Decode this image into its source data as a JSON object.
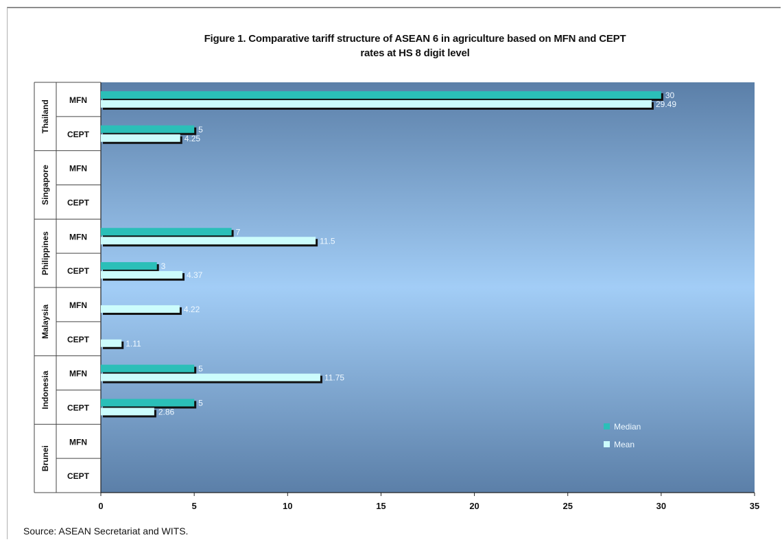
{
  "figure": {
    "title_line1": "Figure 1. Comparative tariff structure of ASEAN 6 in agriculture based on MFN and CEPT",
    "title_line2": "rates at HS 8 digit level",
    "source": "Source: ASEAN Secretariat and WITS."
  },
  "chart_data": {
    "type": "bar",
    "orientation": "horizontal",
    "title": "Figure 1. Comparative tariff structure of ASEAN 6 in agriculture based on MFN and CEPT rates at HS 8 digit level",
    "xlim": [
      0,
      35
    ],
    "xticks": [
      0,
      5,
      10,
      15,
      20,
      25,
      30,
      35
    ],
    "groups": [
      "Thailand",
      "Singapore",
      "Philippines",
      "Malaysia",
      "Indonesia",
      "Brunei"
    ],
    "categories": [
      {
        "country": "Thailand",
        "rate": "MFN"
      },
      {
        "country": "Thailand",
        "rate": "CEPT"
      },
      {
        "country": "Singapore",
        "rate": "MFN"
      },
      {
        "country": "Singapore",
        "rate": "CEPT"
      },
      {
        "country": "Philippines",
        "rate": "MFN"
      },
      {
        "country": "Philippines",
        "rate": "CEPT"
      },
      {
        "country": "Malaysia",
        "rate": "MFN"
      },
      {
        "country": "Malaysia",
        "rate": "CEPT"
      },
      {
        "country": "Indonesia",
        "rate": "MFN"
      },
      {
        "country": "Indonesia",
        "rate": "CEPT"
      },
      {
        "country": "Brunei",
        "rate": "MFN"
      },
      {
        "country": "Brunei",
        "rate": "CEPT"
      }
    ],
    "series": [
      {
        "name": "Median",
        "color": "#2bbfb8",
        "values": [
          30,
          5,
          null,
          null,
          7,
          3,
          null,
          null,
          5,
          5,
          null,
          null
        ],
        "labels": [
          "30",
          "5",
          "",
          "",
          "7",
          "3",
          "",
          "",
          "5",
          "5",
          "",
          ""
        ]
      },
      {
        "name": "Mean",
        "color": "#ccfcfc",
        "values": [
          29.49,
          4.25,
          null,
          null,
          11.5,
          4.37,
          4.22,
          1.11,
          11.75,
          2.86,
          null,
          null
        ],
        "labels": [
          "29.49",
          "4.25",
          "",
          "",
          "11.5",
          "4.37",
          "4.22",
          "1.11",
          "11.75",
          "2.86",
          "",
          ""
        ]
      }
    ],
    "legend": {
      "position": "bottom-right",
      "items": [
        "Median",
        "Mean"
      ]
    },
    "colors": {
      "plot_top": "#5b7fa8",
      "plot_middle": "#a2cdf6",
      "plot_bottom": "#5b7fa8",
      "bar_shadow": "#111111"
    }
  }
}
